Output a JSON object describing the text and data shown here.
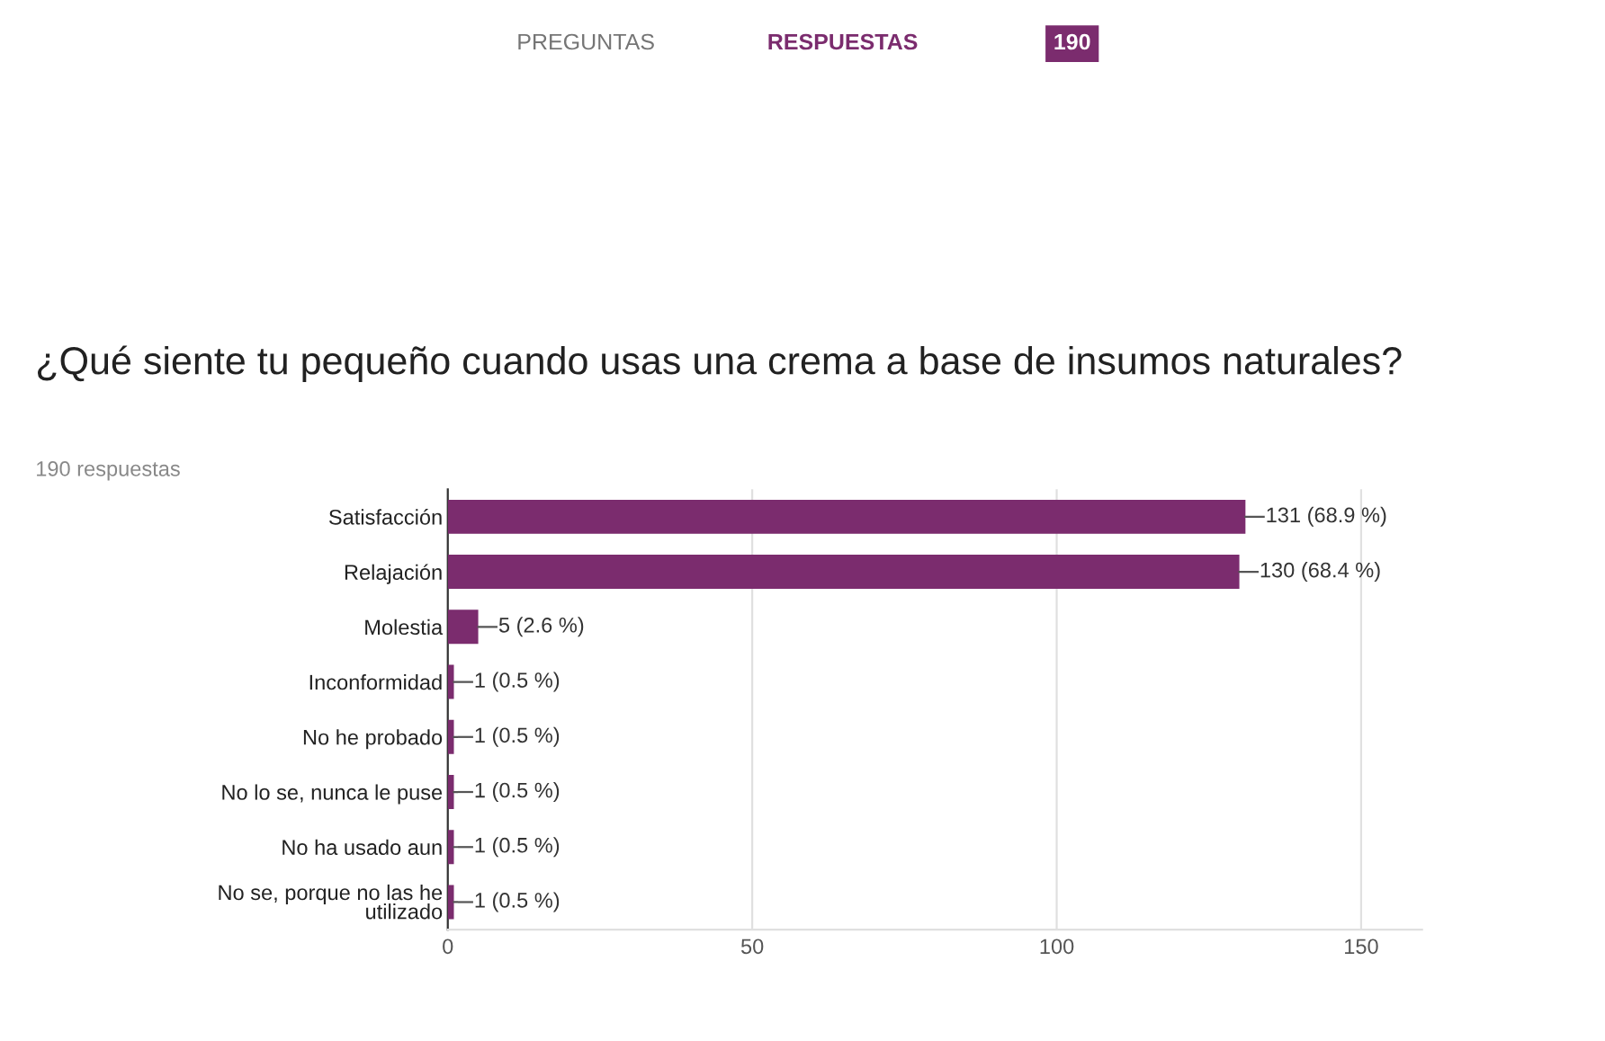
{
  "chart_data": {
    "type": "bar",
    "orientation": "horizontal",
    "title": "¿Qué siente tu pequeño cuando usas una crema a base de insumos naturales?",
    "subtitle": "190 respuestas",
    "annotations": [
      "PREGUNTAS",
      "RESPUESTAS",
      "190"
    ],
    "categories": [
      "Satisfacción",
      "Relajación",
      "Molestia",
      "Inconformidad",
      "No he probado",
      "No lo se, nunca le puse",
      "No ha usado aun",
      "No se, porque no las he\nutilizado"
    ],
    "values": [
      131,
      130,
      5,
      1,
      1,
      1,
      1,
      1
    ],
    "value_labels": [
      "131 (68.9 %)",
      "130 (68.4 %)",
      "5 (2.6 %)",
      "1 (0.5 %)",
      "1 (0.5 %)",
      "1 (0.5 %)",
      "1 (0.5 %)",
      "1 (0.5 %)"
    ],
    "color": "#7b2c6e",
    "xlim": [
      0,
      160
    ],
    "xticks": [
      0,
      50,
      100,
      150
    ],
    "grid": "x"
  }
}
